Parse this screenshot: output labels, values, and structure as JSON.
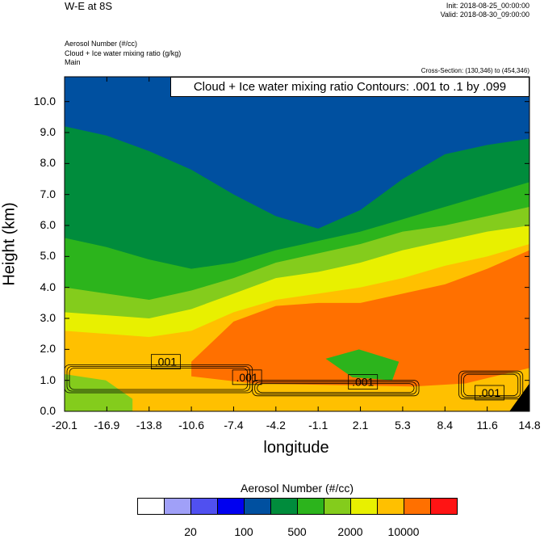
{
  "header": {
    "title": "W-E at 8S",
    "init": "Init: 2018-08-25_00:00:00",
    "valid": "Valid: 2018-08-30_09:00:00"
  },
  "variables": {
    "line1": "Aerosol Number   (#/cc)",
    "line2": "Cloud + Ice water mixing ratio   (g/kg)",
    "line3": "Main"
  },
  "cross_section": "Cross-Section: (130,346) to (454,346)",
  "contour_label": "Cloud + Ice water mixing ratio Contours: .001 to .1 by .099",
  "colorbar": {
    "title": "Aerosol Number  (#/cc)",
    "colors": [
      "#ffffff",
      "#a0a0f8",
      "#5050f0",
      "#0000f0",
      "#0050a0",
      "#008c3c",
      "#2cb41c",
      "#84cc1c",
      "#e8f000",
      "#ffc000",
      "#ff7000",
      "#ff1414"
    ],
    "labels": [
      "20",
      "100",
      "500",
      "2000",
      "10000"
    ]
  },
  "contour_labels": [
    ".001",
    ".001",
    ".001",
    ".001"
  ],
  "chart_data": {
    "type": "heatmap",
    "title": "W-E at 8S",
    "xlabel": "longitude",
    "ylabel": "Height (km)",
    "x_ticks": [
      "-20.1",
      "-16.9",
      "-13.8",
      "-10.6",
      "-7.4",
      "-4.2",
      "-1.1",
      "2.1",
      "5.3",
      "8.4",
      "11.6",
      "14.8"
    ],
    "y_ticks": [
      "0.0",
      "1.0",
      "2.0",
      "3.0",
      "4.0",
      "5.0",
      "6.0",
      "7.0",
      "8.0",
      "9.0",
      "10.0"
    ],
    "xlim": [
      -20.1,
      14.8
    ],
    "ylim": [
      0,
      10.8
    ],
    "color_levels": [
      20,
      100,
      500,
      2000,
      10000
    ],
    "layers": [
      {
        "level_color": "#0050a0",
        "upper_km": 10.8
      },
      {
        "level_color": "#008c3c",
        "boundary_km": [
          9.2,
          8.9,
          8.4,
          7.8,
          7.0,
          6.3,
          5.9,
          6.5,
          7.5,
          8.3,
          8.6,
          8.8
        ]
      },
      {
        "level_color": "#2cb41c",
        "boundary_km": [
          5.6,
          5.3,
          4.9,
          4.6,
          4.8,
          5.2,
          5.5,
          5.8,
          6.2,
          6.6,
          7.0,
          7.4
        ]
      },
      {
        "level_color": "#84cc1c",
        "boundary_km": [
          4.0,
          3.8,
          3.6,
          3.9,
          4.3,
          4.8,
          5.1,
          5.4,
          5.8,
          6.0,
          6.3,
          6.6
        ]
      },
      {
        "level_color": "#e8f000",
        "boundary_km": [
          3.2,
          3.1,
          3.0,
          3.3,
          3.8,
          4.3,
          4.5,
          4.8,
          5.2,
          5.5,
          5.8,
          6.0
        ]
      },
      {
        "level_color": "#ffc000",
        "boundary_km": [
          2.6,
          2.5,
          2.4,
          2.6,
          3.2,
          3.6,
          3.8,
          4.0,
          4.3,
          4.7,
          5.0,
          5.4
        ]
      },
      {
        "level_color": "#ff7000",
        "boundary_km": [
          null,
          null,
          null,
          1.6,
          2.9,
          3.4,
          3.5,
          3.5,
          3.8,
          4.1,
          4.6,
          5.2
        ]
      }
    ],
    "contours": [
      {
        "level": 0.001,
        "x_range": [
          -20.1,
          -6.0
        ],
        "height_km": [
          0.6,
          1.5
        ]
      },
      {
        "level": 0.001,
        "x_range": [
          -6.0,
          6.5
        ],
        "height_km": [
          0.5,
          1.0
        ]
      },
      {
        "level": 0.001,
        "x_range": [
          9.5,
          14.3
        ],
        "height_km": [
          0.4,
          1.3
        ]
      }
    ]
  }
}
